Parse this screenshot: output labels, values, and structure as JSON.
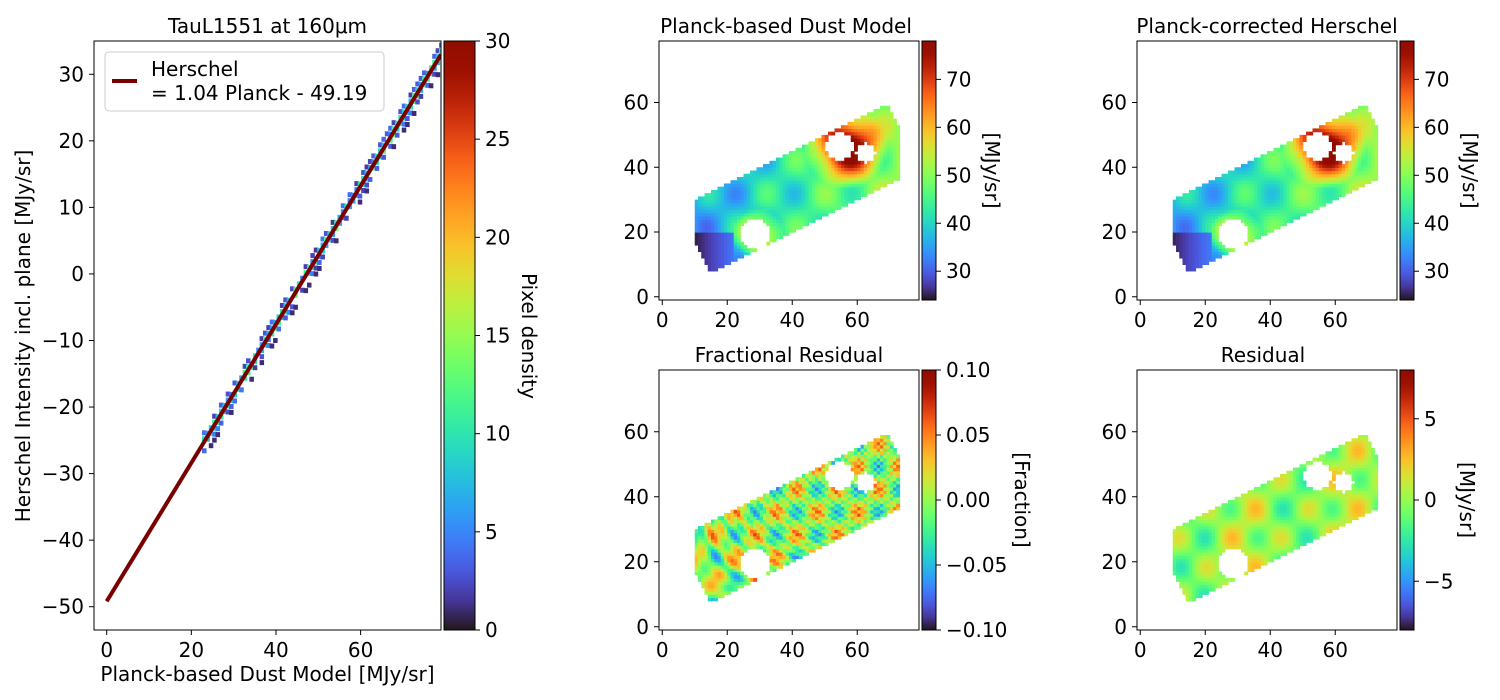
{
  "colors": {
    "fit_line": "#7a0000",
    "colormap": "turbo",
    "background": "#ffffff",
    "axes": "#000000"
  },
  "chart_data": [
    {
      "id": "scatter",
      "type": "heatmap",
      "title": "TauL1551 at 160μm",
      "xlabel": "Planck-based Dust Model [MJy/sr]",
      "ylabel": "Herschel Intensity incl. plane [MJy/sr]",
      "xlim": [
        -3,
        79
      ],
      "ylim": [
        -53.5,
        35
      ],
      "xticks": [
        0,
        20,
        40,
        60
      ],
      "yticks": [
        30,
        20,
        10,
        0,
        -10,
        -20,
        -30,
        -40,
        -50
      ],
      "grid": false,
      "legend": {
        "placement": "top-left",
        "line1": "Herschel",
        "line2": "= 1.04 Planck - 49.19"
      },
      "fit": {
        "slope": 1.04,
        "intercept": -49.19,
        "x_range": [
          0,
          79
        ]
      },
      "density_points": {
        "x_range": [
          23,
          79
        ],
        "scatter_width": 2.2,
        "peak_density": 12
      },
      "colorbar": {
        "label": "Pixel density",
        "range": [
          0,
          30
        ],
        "ticks": [
          30,
          25,
          20,
          15,
          10,
          5,
          0
        ]
      }
    },
    {
      "id": "dust-model",
      "type": "heatmap",
      "title": "Planck-based Dust Model",
      "xlim": [
        -1,
        79
      ],
      "ylim": [
        -1,
        79
      ],
      "xticks": [
        0,
        20,
        40,
        60
      ],
      "yticks": [
        60,
        40,
        20,
        0
      ],
      "colorbar": {
        "label": "[MJy/sr]",
        "range": [
          24,
          78
        ],
        "ticks": [
          70,
          60,
          50,
          40,
          30
        ]
      }
    },
    {
      "id": "corrected-herschel",
      "type": "heatmap",
      "title": "Planck-corrected Herschel",
      "xlim": [
        -1,
        79
      ],
      "ylim": [
        -1,
        79
      ],
      "xticks": [
        0,
        20,
        40,
        60
      ],
      "yticks": [
        60,
        40,
        20,
        0
      ],
      "colorbar": {
        "label": "[MJy/sr]",
        "range": [
          24,
          78
        ],
        "ticks": [
          70,
          60,
          50,
          40,
          30
        ]
      }
    },
    {
      "id": "fractional-residual",
      "type": "heatmap",
      "title": "Fractional Residual",
      "xlim": [
        -1,
        79
      ],
      "ylim": [
        -1,
        79
      ],
      "xticks": [
        0,
        20,
        40,
        60
      ],
      "yticks": [
        60,
        40,
        20,
        0
      ],
      "colorbar": {
        "label": "[Fraction]",
        "range": [
          -0.1,
          0.1
        ],
        "ticks": [
          0.1,
          0.05,
          0.0,
          -0.05,
          -0.1
        ],
        "tick_labels": [
          "0.10",
          "0.05",
          "0.00",
          "−0.05",
          "−0.10"
        ]
      }
    },
    {
      "id": "residual",
      "type": "heatmap",
      "title": "Residual",
      "xlim": [
        -1,
        79
      ],
      "ylim": [
        -1,
        79
      ],
      "xticks": [
        0,
        20,
        40,
        60
      ],
      "yticks": [
        60,
        40,
        20,
        0
      ],
      "colorbar": {
        "label": "[MJy/sr]",
        "range": [
          -8,
          8
        ],
        "ticks": [
          5,
          0,
          -5
        ],
        "tick_labels": [
          "5",
          "0",
          "−5"
        ]
      }
    }
  ]
}
